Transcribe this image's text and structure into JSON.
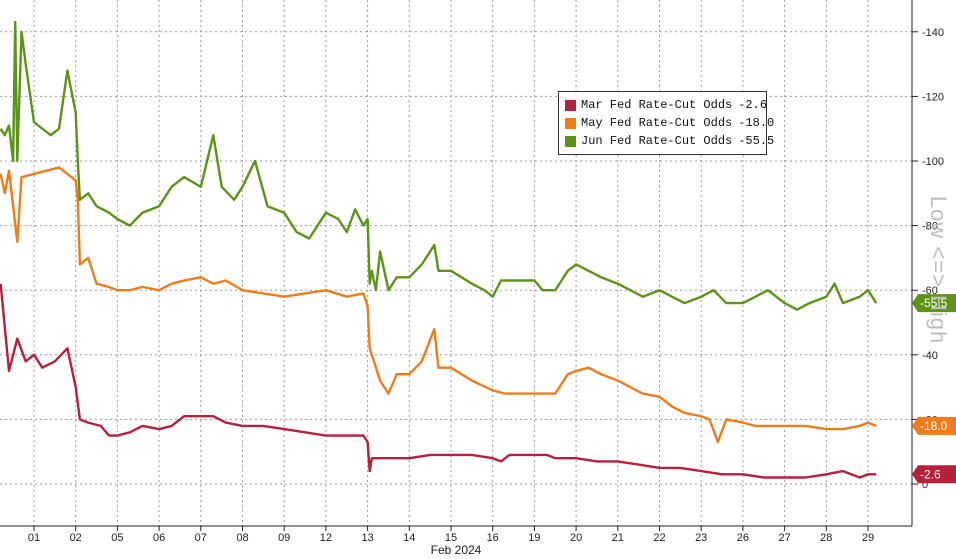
{
  "chart_data": {
    "type": "line",
    "title": "",
    "xlabel": "Feb 2024",
    "ylabel": "Low <=> High",
    "ylim": [
      -10,
      150
    ],
    "y_ticks": [
      0,
      20,
      40,
      60,
      80,
      100,
      120,
      140
    ],
    "y_tick_labels": [
      "0",
      "-20",
      "-40",
      "-60",
      "-80",
      "-100",
      "-120",
      "-140"
    ],
    "x_tick_labels": [
      "01",
      "02",
      "05",
      "06",
      "07",
      "08",
      "09",
      "12",
      "13",
      "14",
      "15",
      "16",
      "19",
      "20",
      "21",
      "22",
      "23",
      "26",
      "27",
      "28",
      "29"
    ],
    "x_index": [
      0,
      1,
      2,
      3,
      4,
      5,
      6,
      7,
      8,
      9,
      10,
      11,
      12,
      13,
      14,
      15,
      16,
      17,
      18,
      19,
      20
    ],
    "grid": true,
    "legend_position": "top-right",
    "series": [
      {
        "name": "Mar Fed Rate-Cut Odds",
        "color": "#b5203a",
        "last_label": "-2.6",
        "points": [
          [
            -0.8,
            62
          ],
          [
            -0.6,
            35
          ],
          [
            -0.4,
            45
          ],
          [
            -0.2,
            38
          ],
          [
            0.0,
            40
          ],
          [
            0.2,
            36
          ],
          [
            0.5,
            38
          ],
          [
            0.8,
            42
          ],
          [
            1.0,
            30
          ],
          [
            1.1,
            20
          ],
          [
            1.3,
            19
          ],
          [
            1.6,
            18
          ],
          [
            1.8,
            15
          ],
          [
            2.0,
            15
          ],
          [
            2.3,
            16
          ],
          [
            2.6,
            18
          ],
          [
            3.0,
            17
          ],
          [
            3.3,
            18
          ],
          [
            3.6,
            21
          ],
          [
            4.0,
            21
          ],
          [
            4.3,
            21
          ],
          [
            4.6,
            19
          ],
          [
            5.0,
            18
          ],
          [
            5.5,
            18
          ],
          [
            6.0,
            17
          ],
          [
            6.5,
            16
          ],
          [
            7.0,
            15
          ],
          [
            7.5,
            15
          ],
          [
            7.9,
            15
          ],
          [
            8.0,
            13
          ],
          [
            8.05,
            4
          ],
          [
            8.1,
            8
          ],
          [
            8.5,
            8
          ],
          [
            9.0,
            8
          ],
          [
            9.5,
            9
          ],
          [
            10.0,
            9
          ],
          [
            10.5,
            9
          ],
          [
            11.0,
            8
          ],
          [
            11.2,
            7
          ],
          [
            11.4,
            9
          ],
          [
            12.0,
            9
          ],
          [
            12.3,
            9
          ],
          [
            12.5,
            8
          ],
          [
            12.8,
            8
          ],
          [
            13.0,
            8
          ],
          [
            13.5,
            7
          ],
          [
            14.0,
            7
          ],
          [
            14.5,
            6
          ],
          [
            15.0,
            5
          ],
          [
            15.5,
            5
          ],
          [
            16.0,
            4
          ],
          [
            16.5,
            3
          ],
          [
            17.0,
            3
          ],
          [
            17.5,
            2
          ],
          [
            18.0,
            2
          ],
          [
            18.5,
            2
          ],
          [
            19.0,
            3
          ],
          [
            19.4,
            4
          ],
          [
            19.8,
            2
          ],
          [
            20.0,
            3
          ],
          [
            20.2,
            3
          ]
        ]
      },
      {
        "name": "May Fed Rate-Cut Odds",
        "color": "#ef7c1a",
        "last_label": "-18.0",
        "points": [
          [
            -0.8,
            96
          ],
          [
            -0.7,
            90
          ],
          [
            -0.6,
            97
          ],
          [
            -0.4,
            75
          ],
          [
            -0.3,
            95
          ],
          [
            0.0,
            96
          ],
          [
            0.3,
            97
          ],
          [
            0.6,
            98
          ],
          [
            0.8,
            96
          ],
          [
            1.0,
            94
          ],
          [
            1.05,
            88
          ],
          [
            1.1,
            68
          ],
          [
            1.3,
            70
          ],
          [
            1.5,
            62
          ],
          [
            1.8,
            61
          ],
          [
            2.0,
            60
          ],
          [
            2.3,
            60
          ],
          [
            2.6,
            61
          ],
          [
            3.0,
            60
          ],
          [
            3.3,
            62
          ],
          [
            3.6,
            63
          ],
          [
            4.0,
            64
          ],
          [
            4.3,
            62
          ],
          [
            4.6,
            63
          ],
          [
            5.0,
            60
          ],
          [
            5.5,
            59
          ],
          [
            6.0,
            58
          ],
          [
            6.5,
            59
          ],
          [
            7.0,
            60
          ],
          [
            7.5,
            58
          ],
          [
            7.9,
            59
          ],
          [
            8.0,
            55
          ],
          [
            8.05,
            42
          ],
          [
            8.1,
            40
          ],
          [
            8.3,
            32
          ],
          [
            8.5,
            28
          ],
          [
            8.7,
            34
          ],
          [
            9.0,
            34
          ],
          [
            9.3,
            38
          ],
          [
            9.6,
            48
          ],
          [
            9.7,
            36
          ],
          [
            10.0,
            36
          ],
          [
            10.5,
            32
          ],
          [
            11.0,
            29
          ],
          [
            11.3,
            28
          ],
          [
            11.8,
            28
          ],
          [
            12.2,
            28
          ],
          [
            12.5,
            28
          ],
          [
            12.8,
            34
          ],
          [
            13.0,
            35
          ],
          [
            13.3,
            36
          ],
          [
            13.6,
            34
          ],
          [
            14.0,
            32
          ],
          [
            14.3,
            30
          ],
          [
            14.6,
            28
          ],
          [
            15.0,
            27
          ],
          [
            15.3,
            24
          ],
          [
            15.6,
            22
          ],
          [
            16.0,
            21
          ],
          [
            16.2,
            20
          ],
          [
            16.4,
            13
          ],
          [
            16.6,
            20
          ],
          [
            17.0,
            19
          ],
          [
            17.3,
            18
          ],
          [
            17.6,
            18
          ],
          [
            18.0,
            18
          ],
          [
            18.5,
            18
          ],
          [
            19.0,
            17
          ],
          [
            19.4,
            17
          ],
          [
            19.8,
            18
          ],
          [
            20.0,
            19
          ],
          [
            20.2,
            18
          ]
        ]
      },
      {
        "name": "Jun Fed Rate-Cut Odds",
        "color": "#5c9418",
        "last_label": "-55.5",
        "points": [
          [
            -0.8,
            110
          ],
          [
            -0.7,
            108
          ],
          [
            -0.6,
            111
          ],
          [
            -0.5,
            100
          ],
          [
            -0.45,
            143
          ],
          [
            -0.4,
            100
          ],
          [
            -0.3,
            140
          ],
          [
            -0.2,
            130
          ],
          [
            0.0,
            112
          ],
          [
            0.2,
            110
          ],
          [
            0.4,
            108
          ],
          [
            0.6,
            110
          ],
          [
            0.8,
            128
          ],
          [
            1.0,
            115
          ],
          [
            1.05,
            100
          ],
          [
            1.1,
            88
          ],
          [
            1.3,
            90
          ],
          [
            1.5,
            86
          ],
          [
            1.8,
            84
          ],
          [
            2.0,
            82
          ],
          [
            2.3,
            80
          ],
          [
            2.6,
            84
          ],
          [
            3.0,
            86
          ],
          [
            3.3,
            92
          ],
          [
            3.6,
            95
          ],
          [
            4.0,
            92
          ],
          [
            4.3,
            108
          ],
          [
            4.5,
            92
          ],
          [
            4.8,
            88
          ],
          [
            5.0,
            92
          ],
          [
            5.3,
            100
          ],
          [
            5.6,
            86
          ],
          [
            6.0,
            84
          ],
          [
            6.3,
            78
          ],
          [
            6.6,
            76
          ],
          [
            7.0,
            84
          ],
          [
            7.3,
            82
          ],
          [
            7.5,
            78
          ],
          [
            7.7,
            85
          ],
          [
            7.9,
            80
          ],
          [
            8.0,
            82
          ],
          [
            8.05,
            62
          ],
          [
            8.1,
            66
          ],
          [
            8.2,
            60
          ],
          [
            8.3,
            72
          ],
          [
            8.5,
            60
          ],
          [
            8.7,
            64
          ],
          [
            9.0,
            64
          ],
          [
            9.3,
            68
          ],
          [
            9.6,
            74
          ],
          [
            9.7,
            66
          ],
          [
            10.0,
            66
          ],
          [
            10.5,
            62
          ],
          [
            10.8,
            60
          ],
          [
            11.0,
            58
          ],
          [
            11.2,
            63
          ],
          [
            12.0,
            63
          ],
          [
            12.2,
            60
          ],
          [
            12.5,
            60
          ],
          [
            12.8,
            66
          ],
          [
            13.0,
            68
          ],
          [
            13.3,
            66
          ],
          [
            13.6,
            64
          ],
          [
            14.0,
            62
          ],
          [
            14.3,
            60
          ],
          [
            14.6,
            58
          ],
          [
            15.0,
            60
          ],
          [
            15.3,
            58
          ],
          [
            15.6,
            56
          ],
          [
            16.0,
            58
          ],
          [
            16.3,
            60
          ],
          [
            16.6,
            56
          ],
          [
            17.0,
            56
          ],
          [
            17.3,
            58
          ],
          [
            17.6,
            60
          ],
          [
            18.0,
            56
          ],
          [
            18.3,
            54
          ],
          [
            18.6,
            56
          ],
          [
            19.0,
            58
          ],
          [
            19.2,
            62
          ],
          [
            19.4,
            56
          ],
          [
            19.8,
            58
          ],
          [
            20.0,
            60
          ],
          [
            20.2,
            56
          ]
        ]
      }
    ]
  }
}
